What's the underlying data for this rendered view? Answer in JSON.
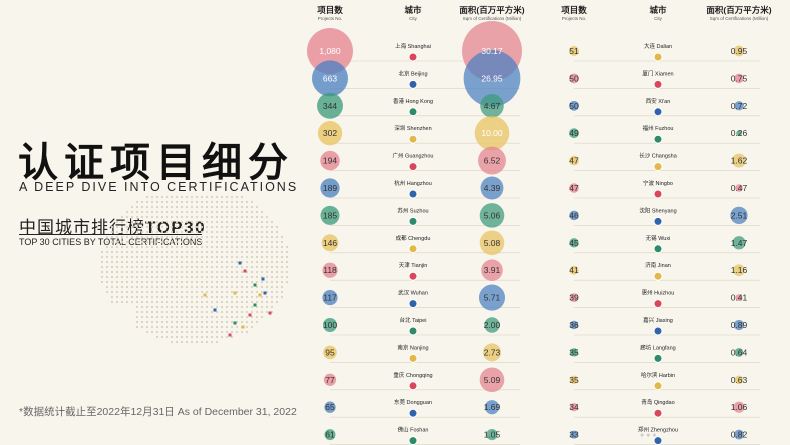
{
  "left": {
    "title_cn": "认证项目细分",
    "title_en": "A DEEP DIVE INTO CERTIFICATIONS",
    "subtitle_cn": "中国城市排行榜",
    "subtitle_top": "TOP30",
    "subtitle_en": "TOP 30 CITIES BY TOTAL CERTIFICATIONS",
    "footnote": "*数据统计截止至2022年12月31日 As of December 31, 2022"
  },
  "headers": {
    "projects_cn": "项目数",
    "projects_en": "Projects No.",
    "city_cn": "城市",
    "city_en": "City",
    "area_cn": "面积(百万平方米)",
    "area_en": "Sqm of Certifications (Million)"
  },
  "colors": {
    "pink": "#e5828f",
    "blue": "#4a7fc1",
    "green": "#3a9a7a",
    "yellow": "#e8c25e",
    "dot_pink": "#d9475d",
    "dot_blue": "#2f63ad",
    "dot_green": "#2d8a6a",
    "dot_yellow": "#e2b84a"
  },
  "chart_data": {
    "type": "table",
    "columns": [
      "Projects No.",
      "City",
      "Sqm of Certifications (Million)"
    ],
    "rows": [
      {
        "projects": "1,080",
        "city_cn": "上海",
        "city_en": "Shanghai",
        "area": "30.17",
        "color": "pink"
      },
      {
        "projects": "663",
        "city_cn": "北京",
        "city_en": "Beijing",
        "area": "26.95",
        "color": "blue"
      },
      {
        "projects": "344",
        "city_cn": "香港",
        "city_en": "Hong Kong",
        "area": "4.67",
        "color": "green"
      },
      {
        "projects": "302",
        "city_cn": "深圳",
        "city_en": "Shenzhen",
        "area": "10.00",
        "color": "yellow"
      },
      {
        "projects": "194",
        "city_cn": "广州",
        "city_en": "Guangzhou",
        "area": "6.52",
        "color": "pink"
      },
      {
        "projects": "189",
        "city_cn": "杭州",
        "city_en": "Hangzhou",
        "area": "4.39",
        "color": "blue"
      },
      {
        "projects": "185",
        "city_cn": "苏州",
        "city_en": "Suzhou",
        "area": "5.06",
        "color": "green"
      },
      {
        "projects": "146",
        "city_cn": "成都",
        "city_en": "Chengdu",
        "area": "5.08",
        "color": "yellow"
      },
      {
        "projects": "118",
        "city_cn": "天津",
        "city_en": "Tianjin",
        "area": "3.91",
        "color": "pink"
      },
      {
        "projects": "117",
        "city_cn": "武汉",
        "city_en": "Wuhan",
        "area": "5.71",
        "color": "blue"
      },
      {
        "projects": "100",
        "city_cn": "台北",
        "city_en": "Taipei",
        "area": "2.00",
        "color": "green"
      },
      {
        "projects": "95",
        "city_cn": "南京",
        "city_en": "Nanjing",
        "area": "2.73",
        "color": "yellow"
      },
      {
        "projects": "77",
        "city_cn": "重庆",
        "city_en": "Chongqing",
        "area": "5.09",
        "color": "pink"
      },
      {
        "projects": "65",
        "city_cn": "东莞",
        "city_en": "Dongguan",
        "area": "1.69",
        "color": "blue"
      },
      {
        "projects": "61",
        "city_cn": "佛山",
        "city_en": "Foshan",
        "area": "1.05",
        "color": "green"
      },
      {
        "projects": "51",
        "city_cn": "大连",
        "city_en": "Dalian",
        "area": "0.95",
        "color": "yellow"
      },
      {
        "projects": "50",
        "city_cn": "厦门",
        "city_en": "Xiamen",
        "area": "0.75",
        "color": "pink"
      },
      {
        "projects": "50",
        "city_cn": "西安",
        "city_en": "Xi'an",
        "area": "0.72",
        "color": "blue"
      },
      {
        "projects": "49",
        "city_cn": "福州",
        "city_en": "Fuzhou",
        "area": "0.26",
        "color": "green"
      },
      {
        "projects": "47",
        "city_cn": "长沙",
        "city_en": "Changsha",
        "area": "1.62",
        "color": "yellow"
      },
      {
        "projects": "47",
        "city_cn": "宁波",
        "city_en": "Ningbo",
        "area": "0.47",
        "color": "pink"
      },
      {
        "projects": "46",
        "city_cn": "沈阳",
        "city_en": "Shenyang",
        "area": "2.51",
        "color": "blue"
      },
      {
        "projects": "45",
        "city_cn": "无锡",
        "city_en": "Wuxi",
        "area": "1.47",
        "color": "green"
      },
      {
        "projects": "41",
        "city_cn": "济南",
        "city_en": "Jinan",
        "area": "1.16",
        "color": "yellow"
      },
      {
        "projects": "39",
        "city_cn": "惠州",
        "city_en": "Huizhou",
        "area": "0.41",
        "color": "pink"
      },
      {
        "projects": "36",
        "city_cn": "嘉兴",
        "city_en": "Jiaxing",
        "area": "0.89",
        "color": "blue"
      },
      {
        "projects": "35",
        "city_cn": "廊坊",
        "city_en": "Langfang",
        "area": "0.64",
        "color": "green"
      },
      {
        "projects": "35",
        "city_cn": "哈尔滨",
        "city_en": "Harbin",
        "area": "0.63",
        "color": "yellow"
      },
      {
        "projects": "34",
        "city_cn": "青岛",
        "city_en": "Qingdao",
        "area": "1.06",
        "color": "pink"
      },
      {
        "projects": "33",
        "city_cn": "郑州",
        "city_en": "Zhengzhou",
        "area": "0.82",
        "color": "blue"
      }
    ]
  }
}
